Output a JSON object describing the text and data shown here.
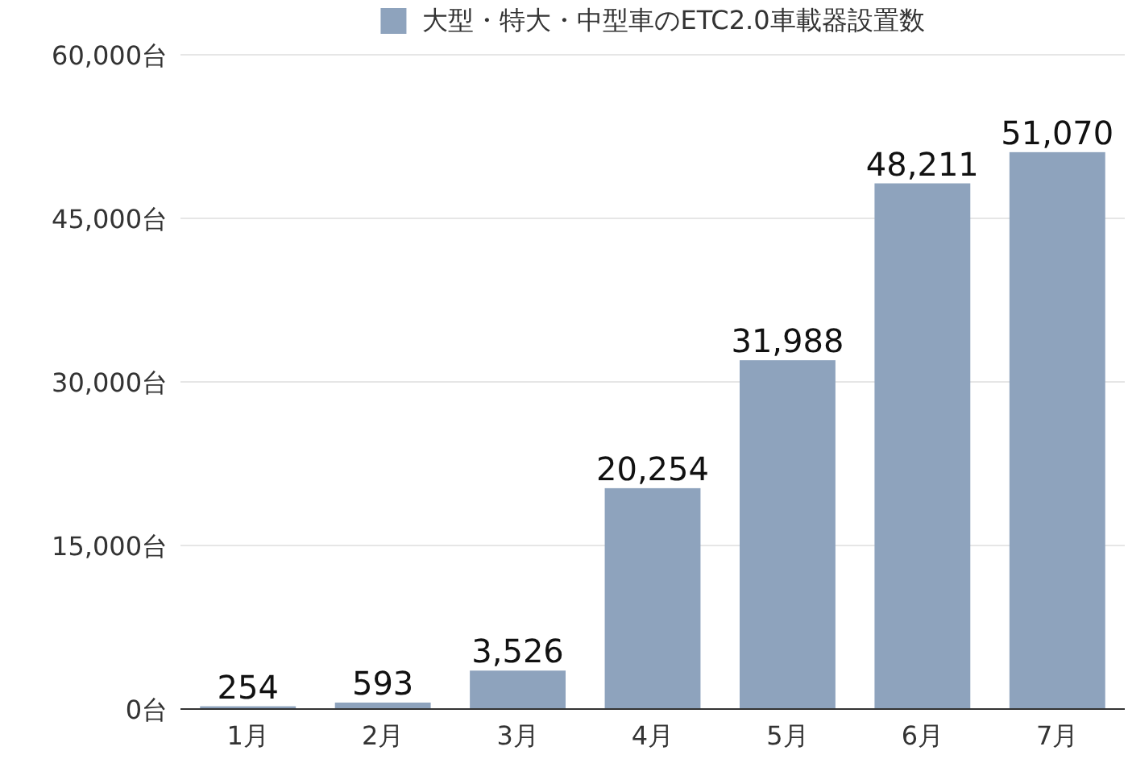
{
  "chart_data": {
    "type": "bar",
    "categories": [
      "1月",
      "2月",
      "3月",
      "4月",
      "5月",
      "6月",
      "7月"
    ],
    "series": [
      {
        "name": "大型・特大・中型車のETC2.0車載器設置数",
        "color": "#8ea3bd",
        "values": [
          254,
          593,
          3526,
          20254,
          31988,
          48211,
          51070
        ],
        "value_labels": [
          "254",
          "593",
          "3,526",
          "20,254",
          "31,988",
          "48,211",
          "51,070"
        ]
      }
    ],
    "ylim": [
      0,
      60000
    ],
    "yticks": [
      {
        "value": 0,
        "label": "0台"
      },
      {
        "value": 15000,
        "label": "15,000台"
      },
      {
        "value": 30000,
        "label": "30,000台"
      },
      {
        "value": 45000,
        "label": "45,000台"
      },
      {
        "value": 60000,
        "label": "60,000台"
      }
    ],
    "grid": "y",
    "legend": "top"
  }
}
